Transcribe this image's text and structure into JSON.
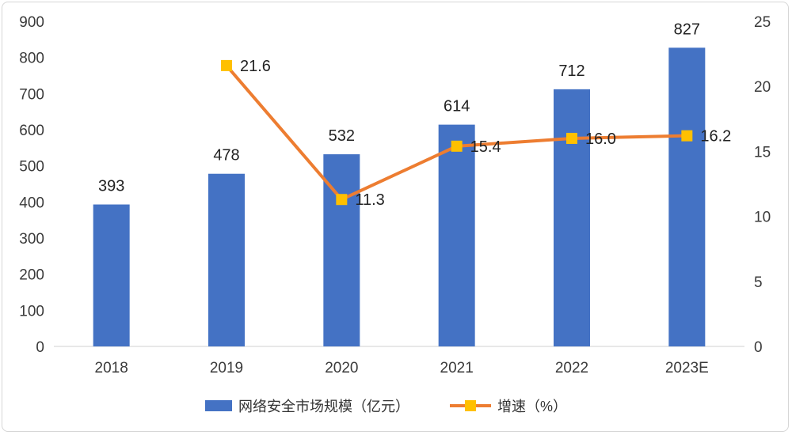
{
  "chart_data": {
    "type": "bar",
    "categories": [
      "2018",
      "2019",
      "2020",
      "2021",
      "2022",
      "2023E"
    ],
    "series": [
      {
        "name": "网络安全市场规模（亿元）",
        "kind": "bar",
        "axis": "left",
        "color": "#4472C4",
        "values": [
          393,
          478,
          532,
          614,
          712,
          827
        ],
        "labels": [
          "393",
          "478",
          "532",
          "614",
          "712",
          "827"
        ]
      },
      {
        "name": "增速（%）",
        "kind": "line",
        "axis": "right",
        "color": "#ED7D31",
        "marker_color": "#FFC000",
        "values": [
          null,
          21.6,
          11.3,
          15.4,
          16.0,
          16.2
        ],
        "labels": [
          "",
          "21.6",
          "11.3",
          "15.4",
          "16.0",
          "16.2"
        ]
      }
    ],
    "y_left": {
      "min": 0,
      "max": 900,
      "ticks": [
        "0",
        "100",
        "200",
        "300",
        "400",
        "500",
        "600",
        "700",
        "800",
        "900"
      ]
    },
    "y_right": {
      "min": 0,
      "max": 25,
      "ticks": [
        "0",
        "5",
        "10",
        "15",
        "20",
        "25"
      ]
    },
    "grid": false,
    "legend": "bottom"
  }
}
